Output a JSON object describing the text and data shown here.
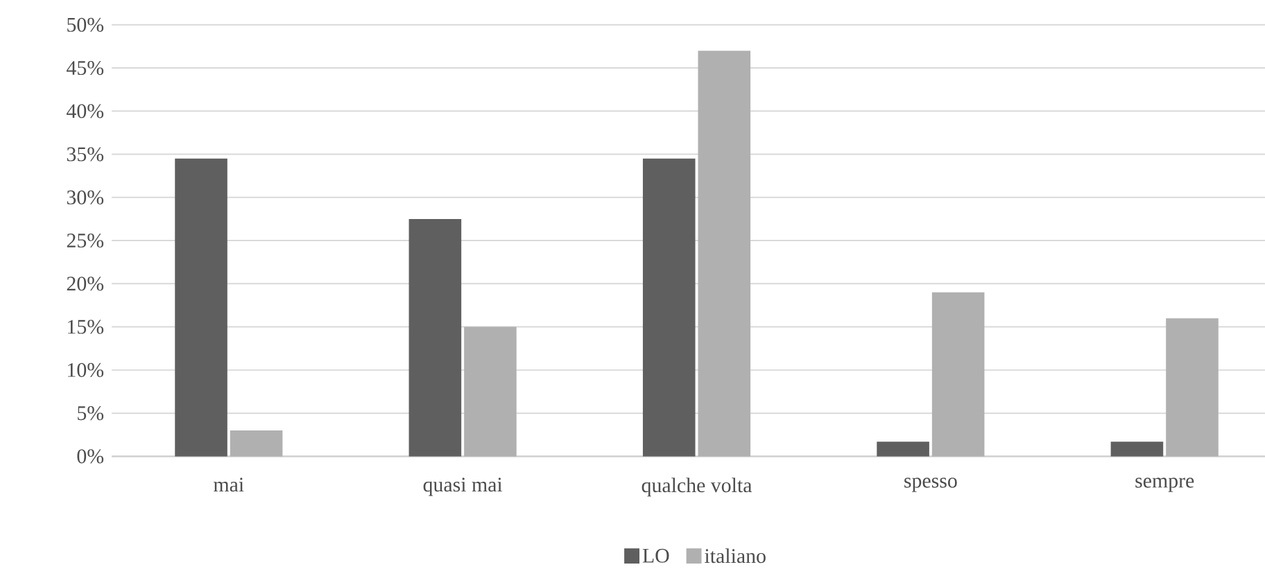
{
  "chart_data": {
    "type": "bar",
    "categories": [
      "mai",
      "quasi mai",
      "qualche volta",
      "spesso",
      "sempre"
    ],
    "series": [
      {
        "name": "LO",
        "color": "#5f5f5f",
        "values": [
          34.5,
          27.5,
          34.5,
          1.7,
          1.7
        ]
      },
      {
        "name": "italiano",
        "color": "#b0b0b0",
        "values": [
          3,
          15,
          47,
          19,
          16
        ]
      }
    ],
    "ylim": [
      0,
      50
    ],
    "yticks": [
      {
        "value": 0,
        "label": "0%"
      },
      {
        "value": 5,
        "label": "5%"
      },
      {
        "value": 10,
        "label": "10%"
      },
      {
        "value": 15,
        "label": "15%"
      },
      {
        "value": 20,
        "label": "20%"
      },
      {
        "value": 25,
        "label": "25%"
      },
      {
        "value": 30,
        "label": "30%"
      },
      {
        "value": 35,
        "label": "35%"
      },
      {
        "value": 40,
        "label": "40%"
      },
      {
        "value": 45,
        "label": "45%"
      },
      {
        "value": 50,
        "label": "50%"
      }
    ],
    "grid": "y",
    "legend": "bottom"
  }
}
